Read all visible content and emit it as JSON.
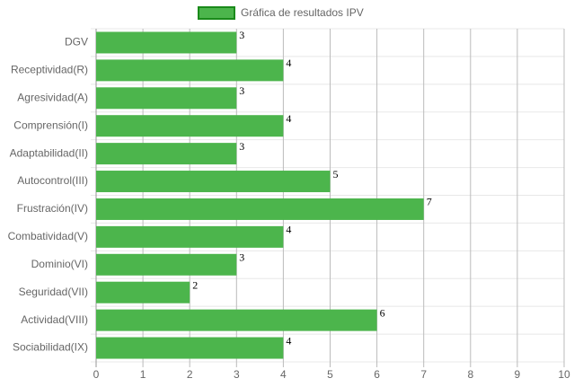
{
  "chart_data": {
    "type": "bar",
    "orientation": "horizontal",
    "categories": [
      "DGV",
      "Receptividad(R)",
      "Agresividad(A)",
      "Comprensión(I)",
      "Adaptabilidad(II)",
      "Autocontrol(III)",
      "Frustración(IV)",
      "Combatividad(V)",
      "Dominio(VI)",
      "Seguridad(VII)",
      "Actividad(VIII)",
      "Sociabilidad(IX)"
    ],
    "series": [
      {
        "name": "Gráfica de resultados IPV",
        "color": "#4cb54c",
        "values": [
          3,
          4,
          3,
          4,
          3,
          5,
          7,
          4,
          3,
          2,
          6,
          4
        ]
      }
    ],
    "xlim": [
      0,
      10
    ],
    "xticks": [
      0,
      1,
      2,
      3,
      4,
      5,
      6,
      7,
      8,
      9,
      10
    ],
    "grid": true,
    "legend": "top"
  }
}
